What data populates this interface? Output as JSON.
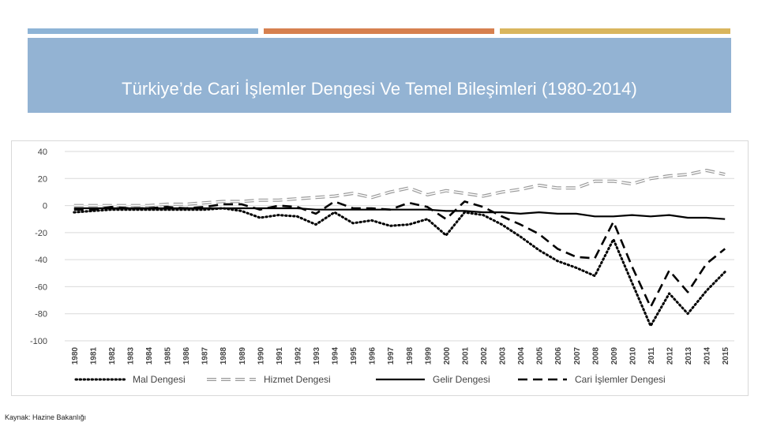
{
  "slide": {
    "title": "Türkiye’de Cari İşlemler Dengesi Ve Temel Bileşimleri (1980-2014)",
    "source": "Kaynak: Hazine Bakanlığı",
    "colors": {
      "bar1": "#8eb4d6",
      "bar2": "#d6804f",
      "bar3": "#d9b65e",
      "title_band": "#93b3d3",
      "title_text": "#ffffff"
    }
  },
  "chart_data": {
    "type": "line",
    "title": "",
    "xlabel": "",
    "ylabel": "",
    "ylim": [
      -100,
      40
    ],
    "yticks": [
      40,
      20,
      0,
      -20,
      -40,
      -60,
      -80,
      -100
    ],
    "grid": true,
    "legend_position": "bottom",
    "x": [
      "1980",
      "1981",
      "1982",
      "1983",
      "1984",
      "1985",
      "1986",
      "1987",
      "1988",
      "1989",
      "1990",
      "1991",
      "1992",
      "1993",
      "1994",
      "1995",
      "1996",
      "1997",
      "1998",
      "1999",
      "2000",
      "2001",
      "2002",
      "2003",
      "2004",
      "2005",
      "2006",
      "2007",
      "2008",
      "2009",
      "2010",
      "2011",
      "2012",
      "2013",
      "2014",
      "2015"
    ],
    "series": [
      {
        "name": "Mal Dengesi",
        "style": "dotted",
        "values": [
          -5,
          -4,
          -3,
          -3,
          -3,
          -3,
          -3,
          -3,
          -2,
          -4,
          -9,
          -7,
          -8,
          -14,
          -5,
          -13,
          -11,
          -15,
          -14,
          -10,
          -22,
          -5,
          -7,
          -14,
          -23,
          -33,
          -41,
          -46,
          -52,
          -25,
          -57,
          -89,
          -65,
          -80,
          -63,
          -49
        ]
      },
      {
        "name": "Hizmet Dengesi",
        "style": "double",
        "values": [
          0,
          0,
          0,
          0,
          0,
          1,
          1,
          2,
          3,
          3,
          4,
          4,
          5,
          6,
          7,
          9,
          6,
          10,
          13,
          8,
          11,
          9,
          7,
          10,
          12,
          15,
          13,
          13,
          18,
          18,
          16,
          20,
          22,
          23,
          26,
          23
        ]
      },
      {
        "name": "Gelir Dengesi",
        "style": "solid",
        "values": [
          -2,
          -2,
          -2,
          -2,
          -2,
          -2,
          -2,
          -2,
          -2,
          -2,
          -2,
          -2,
          -2,
          -3,
          -3,
          -3,
          -3,
          -3,
          -3,
          -3,
          -4,
          -4,
          -5,
          -5,
          -6,
          -5,
          -6,
          -6,
          -8,
          -8,
          -7,
          -8,
          -7,
          -9,
          -9,
          -10
        ]
      },
      {
        "name": "Cari İşlemler Dengesi",
        "style": "dashed",
        "values": [
          -3,
          -3,
          -1,
          -2,
          -2,
          -1,
          -2,
          -1,
          1,
          1,
          -3,
          0,
          -1,
          -6,
          3,
          -2,
          -2,
          -3,
          2,
          -1,
          -10,
          3,
          -1,
          -8,
          -14,
          -21,
          -32,
          -38,
          -39,
          -12,
          -45,
          -75,
          -48,
          -64,
          -43,
          -32
        ]
      }
    ]
  }
}
